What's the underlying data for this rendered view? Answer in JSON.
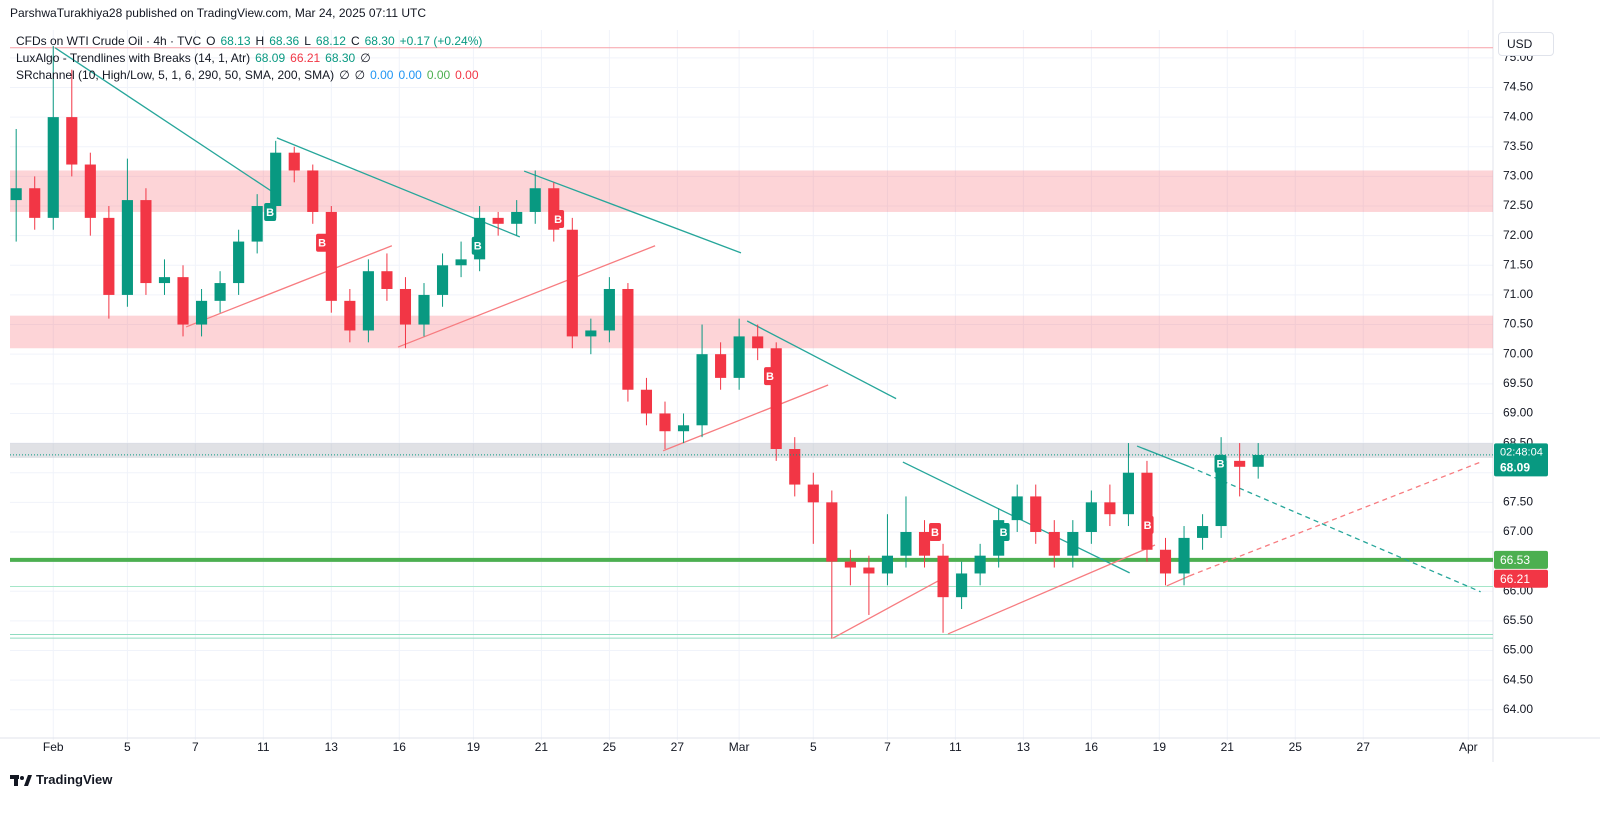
{
  "header": {
    "published": "ParshwaTurakhiya28 published on TradingView.com, Mar 24, 2025 07:11 UTC"
  },
  "legend": [
    {
      "name": "CFDs on WTI Crude Oil · 4h · TVC",
      "items": [
        {
          "text": "O",
          "color": "#131722"
        },
        {
          "text": "68.13",
          "color": "#089981"
        },
        {
          "text": "H",
          "color": "#131722"
        },
        {
          "text": "68.36",
          "color": "#089981"
        },
        {
          "text": "L",
          "color": "#131722"
        },
        {
          "text": "68.12",
          "color": "#089981"
        },
        {
          "text": "C",
          "color": "#131722"
        },
        {
          "text": "68.30",
          "color": "#089981"
        },
        {
          "text": "+0.17 (+0.24%)",
          "color": "#089981"
        }
      ]
    },
    {
      "name": "LuxAlgo - Trendlines with Breaks (14, 1, Atr)",
      "items": [
        {
          "text": "68.09",
          "color": "#089981"
        },
        {
          "text": "66.21",
          "color": "#f23645"
        },
        {
          "text": "68.30",
          "color": "#089981"
        },
        {
          "text": "∅",
          "color": "#131722"
        }
      ]
    },
    {
      "name": "SRchannel (10, High/Low, 5, 1, 6, 290, 50, SMA, 200, SMA)",
      "items": [
        {
          "text": "∅",
          "color": "#131722"
        },
        {
          "text": "∅",
          "color": "#131722"
        },
        {
          "text": "0.00",
          "color": "#2196f3"
        },
        {
          "text": "0.00",
          "color": "#2196f3"
        },
        {
          "text": "0.00",
          "color": "#4caf50"
        },
        {
          "text": "0.00",
          "color": "#f23645"
        }
      ]
    }
  ],
  "currency": "USD",
  "footer": {
    "brand": "TradingView"
  },
  "chart_data": {
    "type": "candlestick",
    "up_color": "#089981",
    "down_color": "#f23645",
    "grid": true,
    "xlim": [
      0,
      240
    ],
    "ylim": [
      63.49,
      75.47
    ],
    "xticks": [
      {
        "value": 7,
        "label": "Feb"
      },
      {
        "value": 19,
        "label": "5"
      },
      {
        "value": 30,
        "label": "7"
      },
      {
        "value": 41,
        "label": "11"
      },
      {
        "value": 52,
        "label": "13"
      },
      {
        "value": 63,
        "label": "16"
      },
      {
        "value": 75,
        "label": "19"
      },
      {
        "value": 86,
        "label": "21"
      },
      {
        "value": 97,
        "label": "25"
      },
      {
        "value": 108,
        "label": "27"
      },
      {
        "value": 118,
        "label": "Mar"
      },
      {
        "value": 130,
        "label": "5"
      },
      {
        "value": 142,
        "label": "7"
      },
      {
        "value": 153,
        "label": "11"
      },
      {
        "value": 164,
        "label": "13"
      },
      {
        "value": 175,
        "label": "16"
      },
      {
        "value": 186,
        "label": "19"
      },
      {
        "value": 197,
        "label": "21"
      },
      {
        "value": 208,
        "label": "25"
      },
      {
        "value": 219,
        "label": "27"
      },
      {
        "value": 236,
        "label": "Apr"
      }
    ],
    "yticks": [
      {
        "value": 64,
        "label": "64.00"
      },
      {
        "value": 64.5,
        "label": "64.50"
      },
      {
        "value": 65,
        "label": "65.00"
      },
      {
        "value": 65.5,
        "label": "65.50"
      },
      {
        "value": 66,
        "label": "66.00"
      },
      {
        "value": 66.5,
        "label": "66.50"
      },
      {
        "value": 67,
        "label": "67.00"
      },
      {
        "value": 67.5,
        "label": "67.50"
      },
      {
        "value": 68,
        "label": "68.00"
      },
      {
        "value": 68.5,
        "label": "68.50"
      },
      {
        "value": 69,
        "label": "69.00"
      },
      {
        "value": 69.5,
        "label": "69.50"
      },
      {
        "value": 70,
        "label": "70.00"
      },
      {
        "value": 70.5,
        "label": "70.50"
      },
      {
        "value": 71,
        "label": "71.00"
      },
      {
        "value": 71.5,
        "label": "71.50"
      },
      {
        "value": 72,
        "label": "72.00"
      },
      {
        "value": 72.5,
        "label": "72.50"
      },
      {
        "value": 73,
        "label": "73.00"
      },
      {
        "value": 73.5,
        "label": "73.50"
      },
      {
        "value": 74,
        "label": "74.00"
      },
      {
        "value": 74.5,
        "label": "74.50"
      },
      {
        "value": 75,
        "label": "75.00"
      }
    ],
    "x": [
      1,
      4,
      7,
      10,
      13,
      16,
      19,
      22,
      25,
      28,
      31,
      34,
      37,
      40,
      43,
      46,
      49,
      52,
      55,
      58,
      61,
      64,
      67,
      70,
      73,
      76,
      79,
      82,
      85,
      88,
      91,
      94,
      97,
      100,
      103,
      106,
      109,
      112,
      115,
      118,
      121,
      124,
      127,
      130,
      133,
      136,
      139,
      142,
      145,
      148,
      151,
      154,
      157,
      160,
      163,
      166,
      169,
      172,
      175,
      178,
      181,
      184,
      187,
      190,
      193,
      196,
      199,
      202
    ],
    "open": [
      72.6,
      72.8,
      72.3,
      74.0,
      73.2,
      72.3,
      71.0,
      72.6,
      71.2,
      71.3,
      70.5,
      70.9,
      71.2,
      71.9,
      72.5,
      73.4,
      73.1,
      72.4,
      70.9,
      70.4,
      71.4,
      71.1,
      70.5,
      71.0,
      71.5,
      71.6,
      72.3,
      72.2,
      72.4,
      72.8,
      72.1,
      70.3,
      70.4,
      71.1,
      69.4,
      69.0,
      68.7,
      68.8,
      70.0,
      69.6,
      70.3,
      70.1,
      68.4,
      67.8,
      67.5,
      66.5,
      66.4,
      66.3,
      66.6,
      67.0,
      66.6,
      65.9,
      66.3,
      66.6,
      67.2,
      67.6,
      67.0,
      66.6,
      67.0,
      67.5,
      67.3,
      68.0,
      66.7,
      66.3,
      66.9,
      67.1,
      68.2,
      68.1
    ],
    "high": [
      73.8,
      73.0,
      75.2,
      74.8,
      73.4,
      72.5,
      73.3,
      72.8,
      71.6,
      71.5,
      71.1,
      71.4,
      72.1,
      72.7,
      73.6,
      73.5,
      73.2,
      72.5,
      71.1,
      71.6,
      71.7,
      71.3,
      71.2,
      71.7,
      71.9,
      72.5,
      72.4,
      72.6,
      73.1,
      72.9,
      72.3,
      70.6,
      71.3,
      71.2,
      69.6,
      69.2,
      69.0,
      70.5,
      70.2,
      70.6,
      70.5,
      70.2,
      68.6,
      68.0,
      67.7,
      66.7,
      66.6,
      67.3,
      67.6,
      67.2,
      66.8,
      66.5,
      66.8,
      67.4,
      67.8,
      67.8,
      67.2,
      67.2,
      67.7,
      67.8,
      68.5,
      68.2,
      66.9,
      67.1,
      67.3,
      68.6,
      68.5,
      68.5
    ],
    "low": [
      71.9,
      72.1,
      72.1,
      73.0,
      72.0,
      70.6,
      70.8,
      71.0,
      71.0,
      70.3,
      70.3,
      70.7,
      71.0,
      71.7,
      72.3,
      72.9,
      72.2,
      70.7,
      70.2,
      70.2,
      70.9,
      70.1,
      70.3,
      70.8,
      71.3,
      71.4,
      72.0,
      72.0,
      72.2,
      71.9,
      70.1,
      70.0,
      70.2,
      69.2,
      68.8,
      68.4,
      68.5,
      68.6,
      69.4,
      69.4,
      69.9,
      68.2,
      67.6,
      66.8,
      65.2,
      66.1,
      65.6,
      66.1,
      66.4,
      66.4,
      65.3,
      65.7,
      66.1,
      66.4,
      67.0,
      66.8,
      66.4,
      66.4,
      66.8,
      67.1,
      67.1,
      66.5,
      66.1,
      66.1,
      66.7,
      66.9,
      67.6,
      67.9
    ],
    "close": [
      72.8,
      72.3,
      74.0,
      73.2,
      72.3,
      71.0,
      72.6,
      71.2,
      71.3,
      70.5,
      70.9,
      71.2,
      71.9,
      72.5,
      73.4,
      73.1,
      72.4,
      70.9,
      70.4,
      71.4,
      71.1,
      70.5,
      71.0,
      71.5,
      71.6,
      72.3,
      72.2,
      72.4,
      72.8,
      72.1,
      70.3,
      70.4,
      71.1,
      69.4,
      69.0,
      68.7,
      68.8,
      70.0,
      69.6,
      70.3,
      70.1,
      68.4,
      67.8,
      67.5,
      66.5,
      66.4,
      66.3,
      66.6,
      67.0,
      66.6,
      65.9,
      66.3,
      66.6,
      67.2,
      67.6,
      67.0,
      66.6,
      67.0,
      67.5,
      67.3,
      68.0,
      66.7,
      66.3,
      66.9,
      67.1,
      68.2,
      68.1,
      68.3
    ],
    "zones": [
      {
        "from": 72.4,
        "to": 73.1,
        "color": "#f7525f",
        "opacity": 0.25
      },
      {
        "from": 70.1,
        "to": 70.65,
        "color": "#f7525f",
        "opacity": 0.25
      },
      {
        "from": 68.25,
        "to": 68.5,
        "color": "#b2b5be",
        "opacity": 0.4
      }
    ],
    "levels": [
      {
        "value": 75.17,
        "color": "#f7a1a8",
        "width": 1
      },
      {
        "value": 66.53,
        "color": "#4caf50",
        "width": 4
      },
      {
        "value": 66.08,
        "color": "#a5e6c8",
        "width": 1
      },
      {
        "value": 65.21,
        "color": "#8fdcc0",
        "width": 1
      },
      {
        "value": 65.27,
        "color": "#8fdcc0",
        "width": 1
      }
    ],
    "trendlines": [
      {
        "x": [
          7.3,
          43.2
        ],
        "y": [
          75.17,
          72.69
        ],
        "color": "#26a69a"
      },
      {
        "x": [
          43.2,
          82.5
        ],
        "y": [
          73.65,
          71.98
        ],
        "color": "#26a69a"
      },
      {
        "x": [
          83.2,
          118.3
        ],
        "y": [
          73.09,
          71.71
        ],
        "color": "#26a69a"
      },
      {
        "x": [
          119.3,
          143.4
        ],
        "y": [
          70.56,
          69.25
        ],
        "color": "#26a69a"
      },
      {
        "x": [
          144.5,
          181.2
        ],
        "y": [
          68.18,
          66.31
        ],
        "color": "#26a69a"
      },
      {
        "x": [
          182.4,
          190.9
        ],
        "y": [
          68.45,
          68.1
        ],
        "color": "#26a69a"
      },
      {
        "x": [
          190.9,
          238.0
        ],
        "y": [
          68.1,
          65.99
        ],
        "color": "#26a69a",
        "dashed": true
      },
      {
        "x": [
          28.5,
          61.8
        ],
        "y": [
          70.46,
          71.83
        ],
        "color": "#f77c80"
      },
      {
        "x": [
          62.8,
          104.4
        ],
        "y": [
          70.12,
          71.83
        ],
        "color": "#f77c80"
      },
      {
        "x": [
          105.7,
          132.4
        ],
        "y": [
          68.37,
          69.48
        ],
        "color": "#f77c80"
      },
      {
        "x": [
          133.2,
          150.5
        ],
        "y": [
          65.21,
          66.19
        ],
        "color": "#f77c80"
      },
      {
        "x": [
          151.8,
          185.3
        ],
        "y": [
          65.28,
          66.78
        ],
        "color": "#f77c80"
      },
      {
        "x": [
          187.2,
          190.9
        ],
        "y": [
          66.09,
          66.26
        ],
        "color": "#f77c80"
      },
      {
        "x": [
          190.9,
          238.0
        ],
        "y": [
          66.26,
          68.18
        ],
        "color": "#f77c80",
        "dashed": true
      }
    ],
    "signals": [
      {
        "x": 42.1,
        "y": 72.4,
        "label": "B",
        "color": "#089981"
      },
      {
        "x": 50.5,
        "y": 71.88,
        "label": "B",
        "color": "#f23645"
      },
      {
        "x": 75.7,
        "y": 71.83,
        "label": "B",
        "color": "#089981"
      },
      {
        "x": 88.7,
        "y": 72.28,
        "label": "B",
        "color": "#f23645"
      },
      {
        "x": 123.0,
        "y": 69.63,
        "label": "B",
        "color": "#f23645"
      },
      {
        "x": 149.7,
        "y": 67.0,
        "label": "B",
        "color": "#f23645"
      },
      {
        "x": 160.8,
        "y": 67.0,
        "label": "B",
        "color": "#089981"
      },
      {
        "x": 184.1,
        "y": 67.12,
        "label": "B",
        "color": "#f23645"
      },
      {
        "x": 195.9,
        "y": 68.15,
        "label": "B",
        "color": "#089981"
      }
    ],
    "price_tags": [
      {
        "value": 68.09,
        "color": "#089981",
        "countdown": "02:48:04"
      },
      {
        "value": 66.53,
        "color": "#4caf50"
      },
      {
        "value": 66.21,
        "color": "#f23645"
      }
    ]
  }
}
